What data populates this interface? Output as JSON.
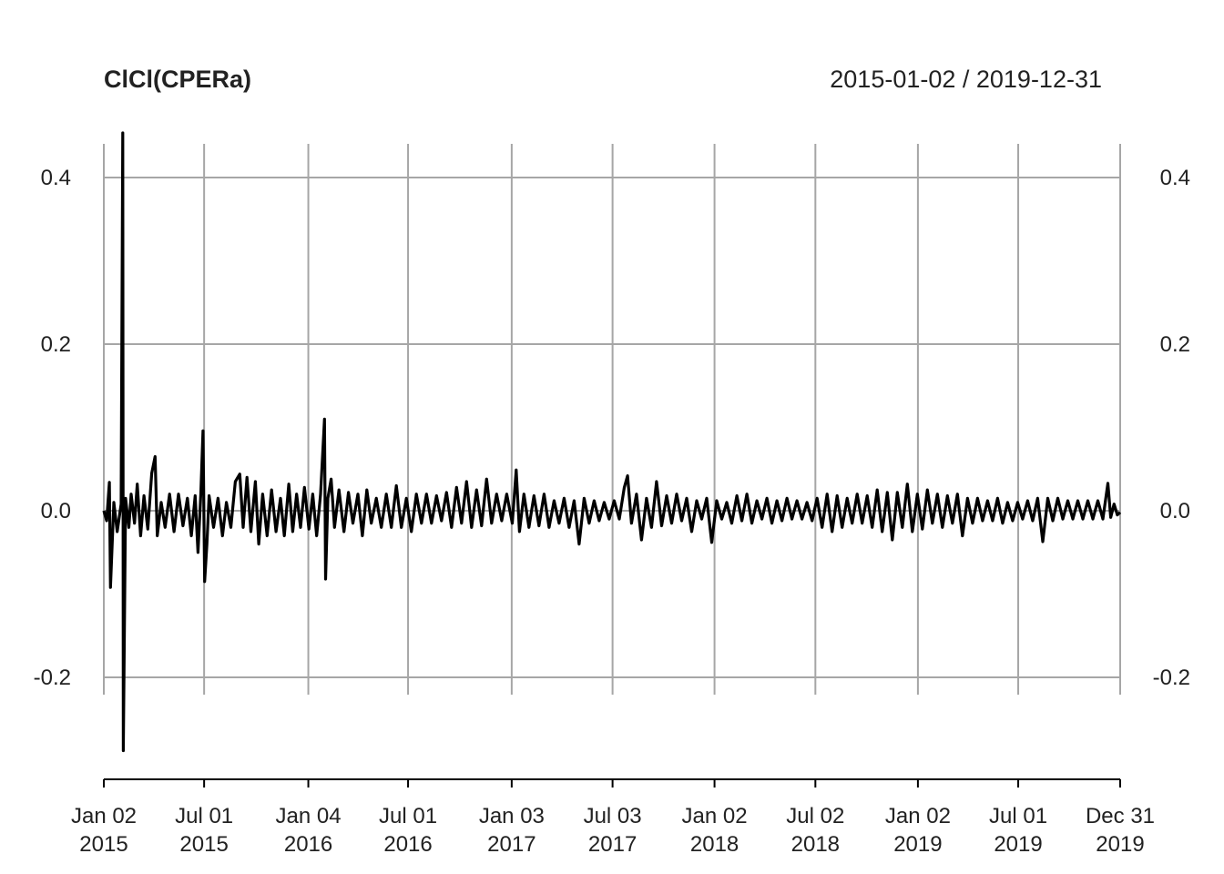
{
  "chart_data": {
    "type": "line",
    "title": "ClCl(CPERa)",
    "date_range": "2015-01-02 / 2019-12-31",
    "xlabel": "",
    "ylabel": "",
    "ylim": [
      -0.3,
      0.46
    ],
    "grid": true,
    "y_ticks": [
      "0.4",
      "0.2",
      "0.0",
      "-0.2"
    ],
    "y_tick_values": [
      0.4,
      0.2,
      0.0,
      -0.2
    ],
    "x_ticks": [
      {
        "date": "2015-01-02",
        "line1": "Jan 02",
        "line2": "2015"
      },
      {
        "date": "2015-07-01",
        "line1": "Jul 01",
        "line2": "2015"
      },
      {
        "date": "2016-01-04",
        "line1": "Jan 04",
        "line2": "2016"
      },
      {
        "date": "2016-07-01",
        "line1": "Jul 01",
        "line2": "2016"
      },
      {
        "date": "2017-01-03",
        "line1": "Jan 03",
        "line2": "2017"
      },
      {
        "date": "2017-07-03",
        "line1": "Jul 03",
        "line2": "2017"
      },
      {
        "date": "2018-01-02",
        "line1": "Jan 02",
        "line2": "2018"
      },
      {
        "date": "2018-07-02",
        "line1": "Jul 02",
        "line2": "2018"
      },
      {
        "date": "2019-01-02",
        "line1": "Jan 02",
        "line2": "2019"
      },
      {
        "date": "2019-07-01",
        "line1": "Jul 01",
        "line2": "2019"
      },
      {
        "date": "2019-12-31",
        "line1": "Dec 31",
        "line2": "2019"
      }
    ],
    "series": [
      {
        "color": "#000000",
        "points": [
          [
            "2015-01-02",
            0.0
          ],
          [
            "2015-01-07",
            -0.012
          ],
          [
            "2015-01-12",
            0.034
          ],
          [
            "2015-01-14",
            -0.092
          ],
          [
            "2015-01-20",
            0.01
          ],
          [
            "2015-01-26",
            -0.025
          ],
          [
            "2015-02-02",
            0.008
          ],
          [
            "2015-02-05",
            0.46
          ],
          [
            "2015-02-06",
            -0.288
          ],
          [
            "2015-02-10",
            0.015
          ],
          [
            "2015-02-16",
            -0.02
          ],
          [
            "2015-02-20",
            0.02
          ],
          [
            "2015-02-26",
            -0.015
          ],
          [
            "2015-03-03",
            0.032
          ],
          [
            "2015-03-09",
            -0.03
          ],
          [
            "2015-03-15",
            0.018
          ],
          [
            "2015-03-22",
            -0.022
          ],
          [
            "2015-03-29",
            0.045
          ],
          [
            "2015-04-04",
            0.065
          ],
          [
            "2015-04-08",
            -0.03
          ],
          [
            "2015-04-15",
            0.01
          ],
          [
            "2015-04-22",
            -0.02
          ],
          [
            "2015-04-30",
            0.02
          ],
          [
            "2015-05-08",
            -0.025
          ],
          [
            "2015-05-16",
            0.02
          ],
          [
            "2015-05-24",
            -0.018
          ],
          [
            "2015-06-01",
            0.015
          ],
          [
            "2015-06-08",
            -0.03
          ],
          [
            "2015-06-15",
            0.018
          ],
          [
            "2015-06-20",
            -0.05
          ],
          [
            "2015-06-25",
            0.02
          ],
          [
            "2015-06-29",
            0.096
          ],
          [
            "2015-07-02",
            -0.085
          ],
          [
            "2015-07-06",
            -0.04
          ],
          [
            "2015-07-10",
            0.018
          ],
          [
            "2015-07-18",
            -0.02
          ],
          [
            "2015-07-26",
            0.015
          ],
          [
            "2015-08-03",
            -0.03
          ],
          [
            "2015-08-10",
            0.01
          ],
          [
            "2015-08-18",
            -0.02
          ],
          [
            "2015-08-26",
            0.035
          ],
          [
            "2015-09-03",
            0.044
          ],
          [
            "2015-09-09",
            -0.02
          ],
          [
            "2015-09-16",
            0.04
          ],
          [
            "2015-09-23",
            -0.025
          ],
          [
            "2015-10-01",
            0.035
          ],
          [
            "2015-10-07",
            -0.04
          ],
          [
            "2015-10-14",
            0.02
          ],
          [
            "2015-10-22",
            -0.03
          ],
          [
            "2015-10-30",
            0.025
          ],
          [
            "2015-11-07",
            -0.025
          ],
          [
            "2015-11-15",
            0.015
          ],
          [
            "2015-11-22",
            -0.03
          ],
          [
            "2015-11-30",
            0.032
          ],
          [
            "2015-12-07",
            -0.025
          ],
          [
            "2015-12-14",
            0.02
          ],
          [
            "2015-12-21",
            -0.02
          ],
          [
            "2015-12-28",
            0.028
          ],
          [
            "2016-01-05",
            -0.022
          ],
          [
            "2016-01-12",
            0.02
          ],
          [
            "2016-01-19",
            -0.03
          ],
          [
            "2016-01-26",
            0.02
          ],
          [
            "2016-02-02",
            0.11
          ],
          [
            "2016-02-04",
            -0.082
          ],
          [
            "2016-02-08",
            0.015
          ],
          [
            "2016-02-14",
            0.038
          ],
          [
            "2016-02-20",
            -0.02
          ],
          [
            "2016-02-28",
            0.025
          ],
          [
            "2016-03-08",
            -0.025
          ],
          [
            "2016-03-16",
            0.022
          ],
          [
            "2016-03-24",
            -0.015
          ],
          [
            "2016-04-02",
            0.02
          ],
          [
            "2016-04-10",
            -0.03
          ],
          [
            "2016-04-18",
            0.025
          ],
          [
            "2016-04-26",
            -0.015
          ],
          [
            "2016-05-05",
            0.015
          ],
          [
            "2016-05-14",
            -0.02
          ],
          [
            "2016-05-23",
            0.02
          ],
          [
            "2016-06-01",
            -0.02
          ],
          [
            "2016-06-10",
            0.03
          ],
          [
            "2016-06-19",
            -0.02
          ],
          [
            "2016-06-28",
            0.015
          ],
          [
            "2016-07-07",
            -0.025
          ],
          [
            "2016-07-16",
            0.02
          ],
          [
            "2016-07-25",
            -0.015
          ],
          [
            "2016-08-03",
            0.02
          ],
          [
            "2016-08-12",
            -0.015
          ],
          [
            "2016-08-21",
            0.018
          ],
          [
            "2016-08-30",
            -0.012
          ],
          [
            "2016-09-08",
            0.022
          ],
          [
            "2016-09-17",
            -0.02
          ],
          [
            "2016-09-26",
            0.028
          ],
          [
            "2016-10-05",
            -0.015
          ],
          [
            "2016-10-14",
            0.035
          ],
          [
            "2016-10-23",
            -0.02
          ],
          [
            "2016-11-01",
            0.025
          ],
          [
            "2016-11-10",
            -0.018
          ],
          [
            "2016-11-19",
            0.038
          ],
          [
            "2016-11-28",
            -0.015
          ],
          [
            "2016-12-07",
            0.02
          ],
          [
            "2016-12-16",
            -0.012
          ],
          [
            "2016-12-25",
            0.02
          ],
          [
            "2017-01-04",
            -0.015
          ],
          [
            "2017-01-11",
            0.049
          ],
          [
            "2017-01-17",
            -0.025
          ],
          [
            "2017-01-25",
            0.02
          ],
          [
            "2017-02-03",
            -0.02
          ],
          [
            "2017-02-12",
            0.018
          ],
          [
            "2017-02-21",
            -0.018
          ],
          [
            "2017-03-02",
            0.02
          ],
          [
            "2017-03-11",
            -0.02
          ],
          [
            "2017-03-20",
            0.012
          ],
          [
            "2017-03-29",
            -0.015
          ],
          [
            "2017-04-07",
            0.015
          ],
          [
            "2017-04-16",
            -0.02
          ],
          [
            "2017-04-25",
            0.012
          ],
          [
            "2017-05-04",
            -0.04
          ],
          [
            "2017-05-13",
            0.015
          ],
          [
            "2017-05-22",
            -0.015
          ],
          [
            "2017-05-31",
            0.012
          ],
          [
            "2017-06-09",
            -0.012
          ],
          [
            "2017-06-18",
            0.01
          ],
          [
            "2017-06-27",
            -0.01
          ],
          [
            "2017-07-06",
            0.012
          ],
          [
            "2017-07-15",
            -0.01
          ],
          [
            "2017-07-24",
            0.028
          ],
          [
            "2017-07-30",
            0.042
          ],
          [
            "2017-08-06",
            -0.015
          ],
          [
            "2017-08-15",
            0.02
          ],
          [
            "2017-08-24",
            -0.035
          ],
          [
            "2017-09-02",
            0.015
          ],
          [
            "2017-09-11",
            -0.02
          ],
          [
            "2017-09-20",
            0.035
          ],
          [
            "2017-09-29",
            -0.018
          ],
          [
            "2017-10-08",
            0.018
          ],
          [
            "2017-10-17",
            -0.015
          ],
          [
            "2017-10-26",
            0.02
          ],
          [
            "2017-11-04",
            -0.012
          ],
          [
            "2017-11-13",
            0.015
          ],
          [
            "2017-11-22",
            -0.025
          ],
          [
            "2017-12-01",
            0.012
          ],
          [
            "2017-12-10",
            -0.01
          ],
          [
            "2017-12-19",
            0.015
          ],
          [
            "2017-12-28",
            -0.038
          ],
          [
            "2018-01-06",
            0.012
          ],
          [
            "2018-01-15",
            -0.01
          ],
          [
            "2018-01-24",
            0.01
          ],
          [
            "2018-02-02",
            -0.015
          ],
          [
            "2018-02-11",
            0.018
          ],
          [
            "2018-02-20",
            -0.012
          ],
          [
            "2018-03-01",
            0.02
          ],
          [
            "2018-03-10",
            -0.015
          ],
          [
            "2018-03-19",
            0.012
          ],
          [
            "2018-03-28",
            -0.01
          ],
          [
            "2018-04-06",
            0.015
          ],
          [
            "2018-04-15",
            -0.015
          ],
          [
            "2018-04-24",
            0.012
          ],
          [
            "2018-05-03",
            -0.012
          ],
          [
            "2018-05-12",
            0.015
          ],
          [
            "2018-05-21",
            -0.01
          ],
          [
            "2018-05-30",
            0.012
          ],
          [
            "2018-06-08",
            -0.01
          ],
          [
            "2018-06-17",
            0.01
          ],
          [
            "2018-06-26",
            -0.012
          ],
          [
            "2018-07-05",
            0.015
          ],
          [
            "2018-07-14",
            -0.02
          ],
          [
            "2018-07-23",
            0.02
          ],
          [
            "2018-08-01",
            -0.025
          ],
          [
            "2018-08-10",
            0.018
          ],
          [
            "2018-08-19",
            -0.02
          ],
          [
            "2018-08-28",
            0.015
          ],
          [
            "2018-09-06",
            -0.015
          ],
          [
            "2018-09-15",
            0.02
          ],
          [
            "2018-09-24",
            -0.015
          ],
          [
            "2018-10-03",
            0.018
          ],
          [
            "2018-10-12",
            -0.02
          ],
          [
            "2018-10-21",
            0.025
          ],
          [
            "2018-10-30",
            -0.025
          ],
          [
            "2018-11-08",
            0.022
          ],
          [
            "2018-11-17",
            -0.035
          ],
          [
            "2018-11-26",
            0.022
          ],
          [
            "2018-12-05",
            -0.02
          ],
          [
            "2018-12-14",
            0.032
          ],
          [
            "2018-12-23",
            -0.025
          ],
          [
            "2019-01-01",
            0.02
          ],
          [
            "2019-01-10",
            -0.022
          ],
          [
            "2019-01-19",
            0.025
          ],
          [
            "2019-01-28",
            -0.015
          ],
          [
            "2019-02-06",
            0.02
          ],
          [
            "2019-02-15",
            -0.02
          ],
          [
            "2019-02-24",
            0.018
          ],
          [
            "2019-03-05",
            -0.015
          ],
          [
            "2019-03-14",
            0.02
          ],
          [
            "2019-03-23",
            -0.03
          ],
          [
            "2019-04-01",
            0.015
          ],
          [
            "2019-04-10",
            -0.015
          ],
          [
            "2019-04-19",
            0.015
          ],
          [
            "2019-04-28",
            -0.012
          ],
          [
            "2019-05-07",
            0.012
          ],
          [
            "2019-05-16",
            -0.012
          ],
          [
            "2019-05-25",
            0.015
          ],
          [
            "2019-06-03",
            -0.015
          ],
          [
            "2019-06-12",
            0.01
          ],
          [
            "2019-06-21",
            -0.012
          ],
          [
            "2019-06-30",
            0.01
          ],
          [
            "2019-07-09",
            -0.01
          ],
          [
            "2019-07-18",
            0.012
          ],
          [
            "2019-07-27",
            -0.012
          ],
          [
            "2019-08-05",
            0.015
          ],
          [
            "2019-08-14",
            -0.037
          ],
          [
            "2019-08-23",
            0.015
          ],
          [
            "2019-09-01",
            -0.012
          ],
          [
            "2019-09-10",
            0.015
          ],
          [
            "2019-09-19",
            -0.01
          ],
          [
            "2019-09-28",
            0.012
          ],
          [
            "2019-10-07",
            -0.01
          ],
          [
            "2019-10-16",
            0.012
          ],
          [
            "2019-10-25",
            -0.01
          ],
          [
            "2019-11-03",
            0.012
          ],
          [
            "2019-11-12",
            -0.01
          ],
          [
            "2019-11-21",
            0.012
          ],
          [
            "2019-11-30",
            -0.01
          ],
          [
            "2019-12-09",
            0.033
          ],
          [
            "2019-12-14",
            -0.008
          ],
          [
            "2019-12-20",
            0.008
          ],
          [
            "2019-12-26",
            -0.005
          ],
          [
            "2019-12-31",
            -0.002
          ]
        ]
      }
    ]
  }
}
